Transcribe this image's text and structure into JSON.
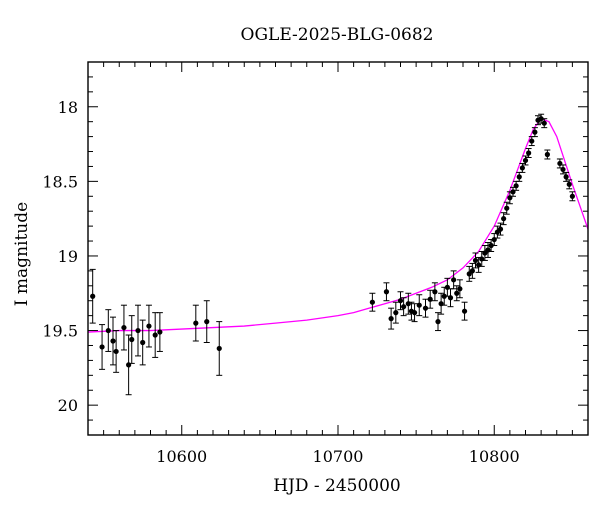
{
  "chart_data": {
    "type": "scatter",
    "title": "OGLE-2025-BLG-0682",
    "xlabel": "HJD - 2450000",
    "ylabel": "I magnitude",
    "xlim": [
      10540,
      10860
    ],
    "ylim": [
      20.2,
      17.7
    ],
    "y_inverted": true,
    "x_ticks": [
      10600,
      10700,
      10800
    ],
    "y_ticks": [
      18,
      18.5,
      19,
      19.5,
      20
    ],
    "x_minor_step": 10,
    "y_minor_step": 0.1,
    "grid": false,
    "legend": "none",
    "colors": {
      "data": "#000000",
      "model": "#ff00ff",
      "frame": "#000000"
    },
    "series": [
      {
        "type": "scatter-errorbars",
        "x": [
          10543,
          10549,
          10553,
          10556,
          10558,
          10563,
          10566,
          10568,
          10572,
          10575,
          10579,
          10583,
          10586,
          10609,
          10616,
          10624,
          10722,
          10731,
          10734,
          10737,
          10740,
          10742,
          10745,
          10747,
          10749,
          10752,
          10756,
          10759,
          10762,
          10764,
          10766,
          10768,
          10770,
          10772,
          10774,
          10776,
          10778,
          10781,
          10784,
          10786,
          10788,
          10790,
          10792,
          10794,
          10796,
          10798,
          10800,
          10802,
          10804,
          10806,
          10808,
          10810,
          10812,
          10814,
          10816,
          10818,
          10820,
          10822,
          10824,
          10826,
          10828,
          10830,
          10832,
          10834,
          10842,
          10844,
          10846,
          10848,
          10850
        ],
        "y": [
          19.27,
          19.61,
          19.5,
          19.57,
          19.64,
          19.48,
          19.73,
          19.56,
          19.5,
          19.58,
          19.47,
          19.53,
          19.51,
          19.45,
          19.44,
          19.62,
          19.31,
          19.24,
          19.42,
          19.38,
          19.3,
          19.34,
          19.32,
          19.37,
          19.38,
          19.33,
          19.35,
          19.29,
          19.24,
          19.44,
          19.32,
          19.27,
          19.21,
          19.28,
          19.16,
          19.25,
          19.22,
          19.37,
          19.12,
          19.1,
          19.03,
          19.06,
          19.02,
          18.98,
          18.96,
          18.93,
          18.89,
          18.84,
          18.82,
          18.75,
          18.68,
          18.61,
          18.57,
          18.53,
          18.47,
          18.41,
          18.36,
          18.31,
          18.23,
          18.17,
          18.09,
          18.08,
          18.11,
          18.32,
          18.38,
          18.42,
          18.47,
          18.52,
          18.6
        ],
        "err": [
          0.18,
          0.15,
          0.14,
          0.16,
          0.14,
          0.15,
          0.2,
          0.16,
          0.17,
          0.15,
          0.14,
          0.15,
          0.13,
          0.12,
          0.14,
          0.18,
          0.06,
          0.06,
          0.07,
          0.07,
          0.06,
          0.06,
          0.07,
          0.06,
          0.06,
          0.07,
          0.06,
          0.06,
          0.06,
          0.06,
          0.07,
          0.06,
          0.06,
          0.06,
          0.06,
          0.05,
          0.06,
          0.06,
          0.05,
          0.05,
          0.05,
          0.05,
          0.05,
          0.05,
          0.05,
          0.04,
          0.04,
          0.04,
          0.04,
          0.04,
          0.04,
          0.04,
          0.03,
          0.03,
          0.03,
          0.03,
          0.03,
          0.03,
          0.03,
          0.03,
          0.03,
          0.03,
          0.03,
          0.03,
          0.03,
          0.03,
          0.03,
          0.03,
          0.03
        ]
      },
      {
        "type": "line",
        "x": [
          10540,
          10560,
          10580,
          10600,
          10620,
          10640,
          10660,
          10680,
          10700,
          10710,
          10720,
          10730,
          10740,
          10750,
          10760,
          10770,
          10780,
          10790,
          10800,
          10810,
          10815,
          10820,
          10825,
          10830,
          10835,
          10840,
          10845,
          10850,
          10855,
          10860
        ],
        "y": [
          19.51,
          19.5,
          19.5,
          19.49,
          19.48,
          19.47,
          19.45,
          19.43,
          19.4,
          19.38,
          19.35,
          19.32,
          19.29,
          19.25,
          19.21,
          19.16,
          19.08,
          18.97,
          18.8,
          18.56,
          18.42,
          18.28,
          18.15,
          18.08,
          18.1,
          18.2,
          18.36,
          18.52,
          18.67,
          18.82
        ]
      }
    ]
  }
}
